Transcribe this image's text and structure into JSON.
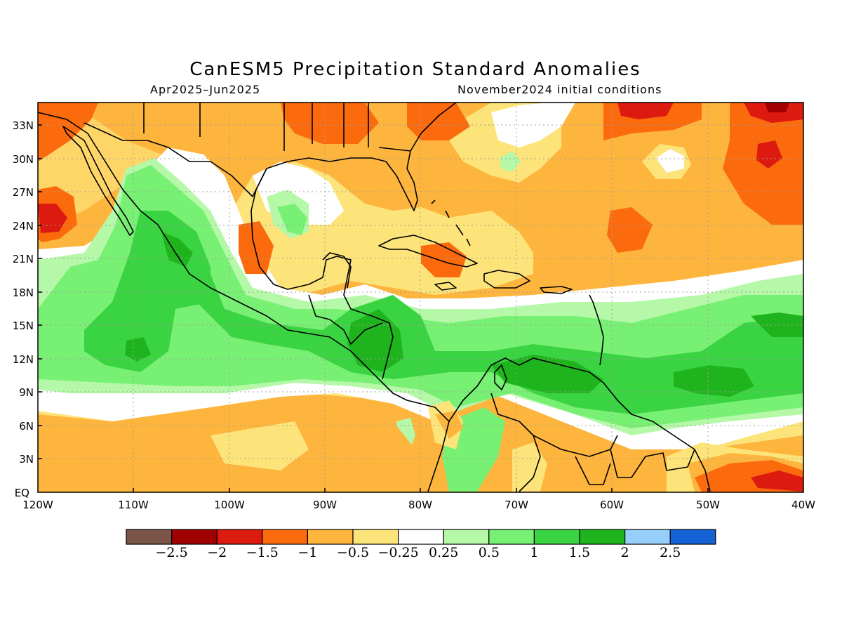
{
  "title": "CanESM5 Precipitation Standard Anomalies",
  "period": "Apr2025–Jun2025",
  "init": "November2024 initial conditions",
  "lat_labels": [
    "33N",
    "30N",
    "27N",
    "24N",
    "21N",
    "18N",
    "15N",
    "12N",
    "9N",
    "6N",
    "3N",
    "EQ"
  ],
  "lon_labels": [
    "120W",
    "110W",
    "100W",
    "90W",
    "80W",
    "70W",
    "60W",
    "50W",
    "40W"
  ],
  "colorbar": {
    "colors": [
      "#7a5548",
      "#a00000",
      "#dc1a10",
      "#fc6a0e",
      "#fdb53d",
      "#fde47a",
      "#ffffff",
      "#b4f8a8",
      "#78f074",
      "#3ad342",
      "#1fb41e",
      "#96d0fa",
      "#1562d6"
    ],
    "labels": [
      "−2.5",
      "−2",
      "−1.5",
      "−1",
      "−0.5",
      "−0.25",
      "0.25",
      "0.5",
      "1",
      "1.5",
      "2",
      "2.5"
    ]
  },
  "colors": {
    "orange": "#fdb53d",
    "yellow": "#fde47a",
    "dark_orange": "#fc6a0e",
    "red": "#dc1a10",
    "dark_red": "#a00000",
    "light_green": "#b4f8a8",
    "green": "#78f074",
    "mid_green": "#3ad342",
    "dark_green": "#1fb41e"
  }
}
